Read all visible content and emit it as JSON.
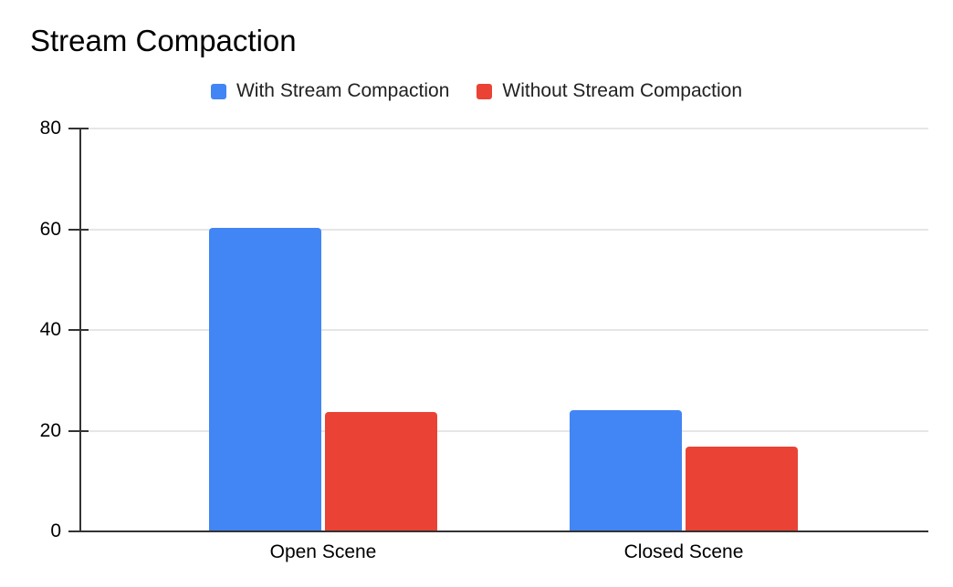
{
  "title": "Stream Compaction",
  "chart_data": {
    "type": "bar",
    "title": "Stream Compaction",
    "categories": [
      "Open Scene",
      "Closed Scene"
    ],
    "series": [
      {
        "name": "With Stream Compaction",
        "color": "#4285F4",
        "values": [
          60.3,
          24.0
        ]
      },
      {
        "name": "Without Stream Compaction",
        "color": "#EA4335",
        "values": [
          23.8,
          16.8
        ]
      }
    ],
    "xlabel": "",
    "ylabel": "",
    "ylim": [
      0,
      80
    ],
    "yticks": [
      0,
      20,
      40,
      60,
      80
    ],
    "grid": true,
    "legend_position": "top",
    "colors": {
      "gridline": "#e6e6e6",
      "axis": "#333333",
      "title_text": "#000000",
      "tick_text": "#000000",
      "legend_text": "#212121",
      "background": "#ffffff"
    }
  }
}
